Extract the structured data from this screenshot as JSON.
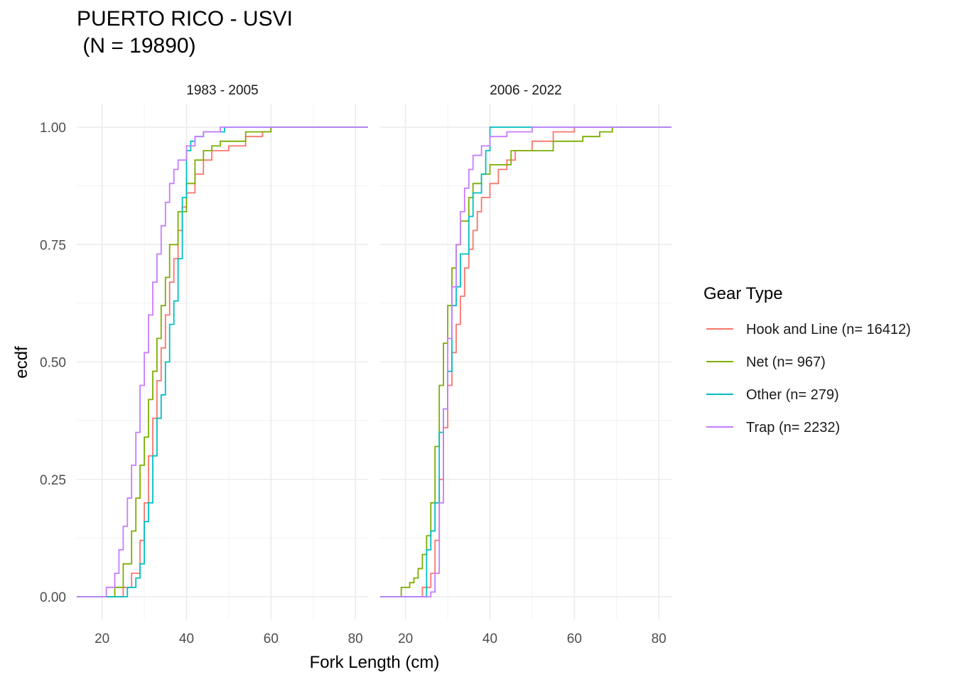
{
  "title_line1": "PUERTO RICO - USVI",
  "title_line2": " (N = 19890)",
  "chart_data": {
    "type": "line",
    "subtype": "step ecdf, faceted",
    "xlabel": "Fork Length (cm)",
    "ylabel": "ecdf",
    "xlim": [
      14,
      83
    ],
    "ylim": [
      0,
      1
    ],
    "x_ticks": [
      "20",
      "40",
      "60",
      "80"
    ],
    "y_ticks": [
      "0.00",
      "0.25",
      "0.50",
      "0.75",
      "1.00"
    ],
    "grid": true,
    "legend": {
      "title": "Gear Type",
      "position": "right",
      "entries": [
        {
          "label": "Hook and Line (n= 16412)",
          "color": "#F8766D"
        },
        {
          "label": "Net (n= 967)",
          "color": "#7CAE00"
        },
        {
          "label": "Other (n= 279)",
          "color": "#00BFC4"
        },
        {
          "label": "Trap (n= 2232)",
          "color": "#C77CFF"
        }
      ]
    },
    "facets": [
      {
        "label": "1983 - 2005",
        "series": [
          {
            "name": "Hook and Line (n= 16412)",
            "color": "#F8766D",
            "points": [
              [
                14,
                0
              ],
              [
                22,
                0
              ],
              [
                25,
                0.02
              ],
              [
                27,
                0.05
              ],
              [
                29,
                0.12
              ],
              [
                30,
                0.2
              ],
              [
                31,
                0.3
              ],
              [
                32,
                0.38
              ],
              [
                33,
                0.46
              ],
              [
                34,
                0.53
              ],
              [
                35,
                0.6
              ],
              [
                36,
                0.67
              ],
              [
                37,
                0.72
              ],
              [
                38,
                0.78
              ],
              [
                39,
                0.83
              ],
              [
                40,
                0.86
              ],
              [
                42,
                0.9
              ],
              [
                44,
                0.93
              ],
              [
                46,
                0.95
              ],
              [
                50,
                0.96
              ],
              [
                54,
                0.98
              ],
              [
                58,
                0.99
              ],
              [
                60,
                1.0
              ],
              [
                83,
                1.0
              ]
            ]
          },
          {
            "name": "Net (n= 967)",
            "color": "#7CAE00",
            "points": [
              [
                14,
                0
              ],
              [
                22,
                0
              ],
              [
                23,
                0.02
              ],
              [
                25,
                0.07
              ],
              [
                27,
                0.14
              ],
              [
                28,
                0.21
              ],
              [
                29,
                0.28
              ],
              [
                30,
                0.34
              ],
              [
                31,
                0.42
              ],
              [
                32,
                0.48
              ],
              [
                33,
                0.55
              ],
              [
                34,
                0.62
              ],
              [
                35,
                0.68
              ],
              [
                36,
                0.75
              ],
              [
                38,
                0.82
              ],
              [
                40,
                0.88
              ],
              [
                42,
                0.93
              ],
              [
                44,
                0.95
              ],
              [
                46,
                0.96
              ],
              [
                48,
                0.97
              ],
              [
                54,
                0.99
              ],
              [
                60,
                1.0
              ],
              [
                83,
                1.0
              ]
            ]
          },
          {
            "name": "Other (n= 279)",
            "color": "#00BFC4",
            "points": [
              [
                14,
                0
              ],
              [
                25,
                0
              ],
              [
                26,
                0.02
              ],
              [
                28,
                0.04
              ],
              [
                29,
                0.07
              ],
              [
                30,
                0.16
              ],
              [
                31,
                0.2
              ],
              [
                32,
                0.3
              ],
              [
                33,
                0.38
              ],
              [
                34,
                0.43
              ],
              [
                35,
                0.5
              ],
              [
                36,
                0.58
              ],
              [
                37,
                0.63
              ],
              [
                38,
                0.72
              ],
              [
                39,
                0.85
              ],
              [
                40,
                0.95
              ],
              [
                41,
                0.97
              ],
              [
                42,
                0.98
              ],
              [
                44,
                0.99
              ],
              [
                49,
                1.0
              ],
              [
                83,
                1.0
              ]
            ]
          },
          {
            "name": "Trap (n= 2232)",
            "color": "#C77CFF",
            "points": [
              [
                14,
                0
              ],
              [
                20,
                0
              ],
              [
                21,
                0.02
              ],
              [
                23,
                0.05
              ],
              [
                24,
                0.1
              ],
              [
                25,
                0.15
              ],
              [
                26,
                0.21
              ],
              [
                27,
                0.28
              ],
              [
                28,
                0.35
              ],
              [
                29,
                0.45
              ],
              [
                30,
                0.52
              ],
              [
                31,
                0.6
              ],
              [
                32,
                0.67
              ],
              [
                33,
                0.73
              ],
              [
                34,
                0.79
              ],
              [
                35,
                0.84
              ],
              [
                36,
                0.88
              ],
              [
                37,
                0.91
              ],
              [
                38,
                0.93
              ],
              [
                40,
                0.96
              ],
              [
                42,
                0.98
              ],
              [
                44,
                0.99
              ],
              [
                48,
                1.0
              ],
              [
                83,
                1.0
              ]
            ]
          }
        ]
      },
      {
        "label": "2006 - 2022",
        "series": [
          {
            "name": "Hook and Line (n= 16412)",
            "color": "#F8766D",
            "points": [
              [
                14,
                0
              ],
              [
                23,
                0
              ],
              [
                24,
                0.02
              ],
              [
                26,
                0.05
              ],
              [
                27,
                0.12
              ],
              [
                28,
                0.25
              ],
              [
                29,
                0.36
              ],
              [
                30,
                0.45
              ],
              [
                31,
                0.52
              ],
              [
                32,
                0.58
              ],
              [
                33,
                0.64
              ],
              [
                34,
                0.7
              ],
              [
                35,
                0.74
              ],
              [
                36,
                0.78
              ],
              [
                37,
                0.82
              ],
              [
                38,
                0.85
              ],
              [
                40,
                0.88
              ],
              [
                42,
                0.91
              ],
              [
                44,
                0.93
              ],
              [
                46,
                0.95
              ],
              [
                50,
                0.97
              ],
              [
                55,
                0.99
              ],
              [
                60,
                1.0
              ],
              [
                83,
                1.0
              ]
            ]
          },
          {
            "name": "Net (n= 967)",
            "color": "#7CAE00",
            "points": [
              [
                14,
                0
              ],
              [
                18,
                0
              ],
              [
                19,
                0.02
              ],
              [
                21,
                0.03
              ],
              [
                22,
                0.04
              ],
              [
                23,
                0.06
              ],
              [
                24,
                0.09
              ],
              [
                25,
                0.13
              ],
              [
                26,
                0.2
              ],
              [
                27,
                0.32
              ],
              [
                28,
                0.45
              ],
              [
                29,
                0.54
              ],
              [
                30,
                0.62
              ],
              [
                31,
                0.7
              ],
              [
                32,
                0.75
              ],
              [
                33,
                0.8
              ],
              [
                35,
                0.85
              ],
              [
                36,
                0.88
              ],
              [
                38,
                0.9
              ],
              [
                40,
                0.92
              ],
              [
                45,
                0.95
              ],
              [
                55,
                0.97
              ],
              [
                62,
                0.98
              ],
              [
                66,
                0.99
              ],
              [
                69,
                1.0
              ],
              [
                83,
                1.0
              ]
            ]
          },
          {
            "name": "Other (n= 279)",
            "color": "#00BFC4",
            "points": [
              [
                14,
                0
              ],
              [
                24,
                0
              ],
              [
                25,
                0.1
              ],
              [
                26,
                0.14
              ],
              [
                27,
                0.2
              ],
              [
                28,
                0.35
              ],
              [
                29,
                0.4
              ],
              [
                30,
                0.48
              ],
              [
                31,
                0.62
              ],
              [
                32,
                0.66
              ],
              [
                33,
                0.73
              ],
              [
                35,
                0.81
              ],
              [
                36,
                0.86
              ],
              [
                38,
                0.9
              ],
              [
                39,
                0.95
              ],
              [
                40,
                1.0
              ],
              [
                83,
                1.0
              ]
            ]
          },
          {
            "name": "Trap (n= 2232)",
            "color": "#C77CFF",
            "points": [
              [
                14,
                0
              ],
              [
                24,
                0
              ],
              [
                26,
                0.01
              ],
              [
                27,
                0.05
              ],
              [
                28,
                0.2
              ],
              [
                29,
                0.4
              ],
              [
                30,
                0.55
              ],
              [
                31,
                0.66
              ],
              [
                32,
                0.75
              ],
              [
                33,
                0.82
              ],
              [
                34,
                0.87
              ],
              [
                35,
                0.91
              ],
              [
                36,
                0.94
              ],
              [
                38,
                0.96
              ],
              [
                40,
                0.98
              ],
              [
                44,
                0.99
              ],
              [
                50,
                1.0
              ],
              [
                83,
                1.0
              ]
            ]
          }
        ]
      }
    ]
  }
}
